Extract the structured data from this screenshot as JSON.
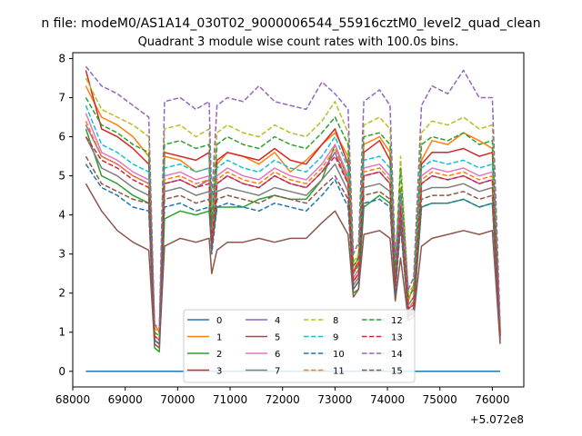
{
  "suptitle": "n file: modeM0/AS1A14_030T02_9000006544_55916cztM0_level2_quad_clean",
  "chart_data": {
    "type": "line",
    "title": "Quadrant 3 module wise count rates with 100.0s bins.",
    "xlabel": "",
    "ylabel": "",
    "offset_label": "+5.072e8",
    "xlim": [
      68000,
      76600
    ],
    "ylim": [
      -0.4,
      8.15
    ],
    "xticks": [
      68000,
      69000,
      70000,
      71000,
      72000,
      73000,
      74000,
      75000,
      76000
    ],
    "xtick_labels": [
      "68000",
      "69000",
      "70000",
      "71000",
      "72000",
      "73000",
      "74000",
      "75000",
      "76000"
    ],
    "yticks": [
      0,
      1,
      2,
      3,
      4,
      5,
      6,
      7,
      8
    ],
    "ytick_labels": [
      "0",
      "1",
      "2",
      "3",
      "4",
      "5",
      "6",
      "7",
      "8"
    ],
    "grid": false,
    "legend_placement": "lower-center",
    "legend_columns": 4,
    "x": [
      68250,
      68550,
      68850,
      69150,
      69450,
      69560,
      69650,
      69750,
      70050,
      70350,
      70600,
      70650,
      70750,
      70950,
      71250,
      71550,
      71850,
      72150,
      72450,
      72750,
      73000,
      73250,
      73350,
      73450,
      73550,
      73850,
      74050,
      74150,
      74250,
      74400,
      74500,
      74650,
      74850,
      75150,
      75450,
      75750,
      76000,
      76150
    ],
    "series": [
      {
        "name": "0",
        "color": "#1f77b4",
        "dash": "solid",
        "values": [
          0,
          0,
          0,
          0,
          0,
          0,
          0,
          0,
          0,
          0,
          0,
          0,
          0,
          0,
          0,
          0,
          0,
          0,
          0,
          0,
          0,
          0,
          0,
          0,
          0,
          0,
          0,
          0,
          0,
          0,
          0,
          0,
          0,
          0,
          0,
          0,
          0,
          0
        ]
      },
      {
        "name": "1",
        "color": "#ff7f0e",
        "dash": "solid",
        "values": [
          7.3,
          6.5,
          6.3,
          6.0,
          5.5,
          1.2,
          1.0,
          5.5,
          5.4,
          5.1,
          5.2,
          3.5,
          5.3,
          5.6,
          5.5,
          5.3,
          5.6,
          5.1,
          5.4,
          5.8,
          6.1,
          5.5,
          2.5,
          3.0,
          5.8,
          6.0,
          5.6,
          2.3,
          4.7,
          1.8,
          2.2,
          5.4,
          5.9,
          5.8,
          6.1,
          5.9,
          5.7,
          1.0
        ]
      },
      {
        "name": "2",
        "color": "#2ca02c",
        "dash": "solid",
        "values": [
          6.2,
          5.0,
          4.8,
          4.5,
          4.3,
          0.6,
          0.5,
          3.9,
          4.1,
          4.0,
          4.1,
          3.2,
          4.2,
          4.2,
          4.2,
          4.4,
          4.5,
          4.4,
          4.4,
          4.9,
          5.8,
          4.9,
          2.0,
          2.1,
          4.2,
          4.5,
          4.3,
          2.1,
          3.8,
          1.4,
          1.5,
          4.2,
          4.3,
          4.3,
          4.4,
          4.2,
          4.3,
          0.8
        ]
      },
      {
        "name": "3",
        "color": "#d62728",
        "dash": "solid",
        "values": [
          7.7,
          6.2,
          6.0,
          5.7,
          5.3,
          0.9,
          0.8,
          5.6,
          5.5,
          5.4,
          5.6,
          3.6,
          5.4,
          5.6,
          5.5,
          5.4,
          5.7,
          5.4,
          5.3,
          5.8,
          6.2,
          5.3,
          2.5,
          2.8,
          5.6,
          5.9,
          5.4,
          2.4,
          4.6,
          1.7,
          1.9,
          5.3,
          5.6,
          5.6,
          5.7,
          5.5,
          5.6,
          1.0
        ]
      },
      {
        "name": "4",
        "color": "#9467bd",
        "dash": "solid",
        "values": [
          6.3,
          5.5,
          5.3,
          5.0,
          4.8,
          0.8,
          0.7,
          4.8,
          4.9,
          4.7,
          4.9,
          3.3,
          4.8,
          5.0,
          4.8,
          4.7,
          5.0,
          4.8,
          4.7,
          5.1,
          5.6,
          4.8,
          2.3,
          2.5,
          5.0,
          5.1,
          4.8,
          2.2,
          4.2,
          1.6,
          1.7,
          4.8,
          5.0,
          4.9,
          5.0,
          4.8,
          4.9,
          0.9
        ]
      },
      {
        "name": "5",
        "color": "#8c564b",
        "dash": "solid",
        "values": [
          4.8,
          4.1,
          3.6,
          3.3,
          3.1,
          0.7,
          0.6,
          3.2,
          3.4,
          3.3,
          3.4,
          2.5,
          3.1,
          3.3,
          3.3,
          3.4,
          3.3,
          3.4,
          3.4,
          3.8,
          4.1,
          3.5,
          1.9,
          2.1,
          3.5,
          3.6,
          3.4,
          1.8,
          2.9,
          1.3,
          1.4,
          3.2,
          3.4,
          3.5,
          3.6,
          3.5,
          3.6,
          0.7
        ]
      },
      {
        "name": "6",
        "color": "#e377c2",
        "dash": "solid",
        "values": [
          6.6,
          5.6,
          5.4,
          5.1,
          4.9,
          0.9,
          0.8,
          5.0,
          5.1,
          4.9,
          5.0,
          3.4,
          5.0,
          5.2,
          5.0,
          4.9,
          5.2,
          5.0,
          4.9,
          5.3,
          5.8,
          5.0,
          2.4,
          2.6,
          5.2,
          5.3,
          5.0,
          2.3,
          4.4,
          1.6,
          1.8,
          5.0,
          5.2,
          5.1,
          5.2,
          5.0,
          5.1,
          0.9
        ]
      },
      {
        "name": "7",
        "color": "#7f7f7f",
        "dash": "solid",
        "values": [
          6.0,
          5.2,
          5.0,
          4.7,
          4.5,
          0.8,
          0.7,
          4.6,
          4.7,
          4.5,
          4.6,
          3.2,
          4.6,
          4.7,
          4.6,
          4.5,
          4.7,
          4.6,
          4.5,
          4.9,
          5.3,
          4.6,
          2.2,
          2.4,
          4.7,
          4.8,
          4.6,
          2.1,
          4.0,
          1.5,
          1.6,
          4.6,
          4.7,
          4.7,
          4.8,
          4.6,
          4.7,
          0.8
        ]
      },
      {
        "name": "8",
        "color": "#bcbd22",
        "dash": "dashed",
        "values": [
          7.5,
          6.7,
          6.5,
          6.3,
          6.0,
          1.1,
          1.0,
          6.2,
          6.3,
          6.0,
          6.2,
          4.0,
          6.1,
          6.3,
          6.1,
          6.0,
          6.3,
          6.1,
          6.0,
          6.4,
          6.9,
          6.1,
          2.8,
          3.0,
          6.3,
          6.5,
          6.2,
          2.7,
          5.5,
          2.0,
          2.2,
          6.1,
          6.4,
          6.3,
          6.5,
          6.2,
          6.3,
          1.1
        ]
      },
      {
        "name": "9",
        "color": "#17becf",
        "dash": "dashed",
        "values": [
          6.8,
          5.8,
          5.6,
          5.3,
          5.1,
          0.9,
          0.8,
          5.2,
          5.3,
          5.1,
          5.2,
          3.5,
          5.2,
          5.4,
          5.2,
          5.1,
          5.4,
          5.2,
          5.1,
          5.5,
          6.0,
          5.2,
          2.5,
          2.7,
          5.4,
          5.5,
          5.2,
          2.4,
          4.6,
          1.7,
          1.9,
          5.2,
          5.4,
          5.3,
          5.4,
          5.2,
          5.3,
          0.9
        ]
      },
      {
        "name": "10",
        "color": "#1f77b4",
        "dash": "dashed",
        "values": [
          5.3,
          4.7,
          4.5,
          4.2,
          4.1,
          0.8,
          0.7,
          4.2,
          4.3,
          4.1,
          4.2,
          3.0,
          4.2,
          4.3,
          4.2,
          4.1,
          4.3,
          4.2,
          4.1,
          4.5,
          4.9,
          4.2,
          2.1,
          2.3,
          4.3,
          4.4,
          4.2,
          2.0,
          3.7,
          1.4,
          1.5,
          4.2,
          4.3,
          4.3,
          4.4,
          4.2,
          4.3,
          0.8
        ]
      },
      {
        "name": "11",
        "color": "#ff7f0e",
        "dash": "dashed",
        "values": [
          6.4,
          5.5,
          5.3,
          5.0,
          4.8,
          0.9,
          0.8,
          4.9,
          5.0,
          4.8,
          4.9,
          3.3,
          4.9,
          5.1,
          4.9,
          4.8,
          5.1,
          4.9,
          4.8,
          5.2,
          5.7,
          4.9,
          2.4,
          2.6,
          5.1,
          5.2,
          4.9,
          2.3,
          4.3,
          1.6,
          1.8,
          4.9,
          5.1,
          5.0,
          5.1,
          4.9,
          5.0,
          0.9
        ]
      },
      {
        "name": "12",
        "color": "#2ca02c",
        "dash": "dashed",
        "values": [
          7.0,
          6.3,
          6.1,
          5.8,
          5.6,
          1.0,
          0.9,
          5.8,
          5.9,
          5.7,
          5.8,
          3.8,
          5.8,
          6.0,
          5.8,
          5.7,
          6.0,
          5.8,
          5.7,
          6.1,
          6.5,
          5.8,
          2.7,
          2.9,
          6.0,
          6.1,
          5.8,
          2.6,
          5.2,
          1.9,
          2.1,
          5.8,
          6.0,
          5.9,
          6.1,
          5.8,
          5.9,
          1.0
        ]
      },
      {
        "name": "13",
        "color": "#d62728",
        "dash": "dashed",
        "values": [
          6.0,
          5.4,
          5.2,
          4.9,
          4.7,
          0.9,
          0.8,
          4.8,
          4.9,
          4.7,
          4.8,
          3.3,
          4.8,
          5.0,
          4.8,
          4.7,
          5.0,
          4.8,
          4.7,
          5.1,
          5.5,
          4.8,
          2.3,
          2.5,
          5.0,
          5.1,
          4.8,
          2.2,
          4.2,
          1.6,
          1.7,
          4.8,
          5.0,
          4.9,
          5.0,
          4.8,
          4.9,
          0.9
        ]
      },
      {
        "name": "14",
        "color": "#9467bd",
        "dash": "dashed",
        "values": [
          7.8,
          7.3,
          7.1,
          6.8,
          6.5,
          1.2,
          1.1,
          6.9,
          7.0,
          6.7,
          6.9,
          4.4,
          6.8,
          7.0,
          6.9,
          7.3,
          6.9,
          6.8,
          6.7,
          7.4,
          7.1,
          6.7,
          3.0,
          3.3,
          6.9,
          7.2,
          6.8,
          2.9,
          4.5,
          2.1,
          2.4,
          6.8,
          7.3,
          7.1,
          7.7,
          7.0,
          7.0,
          1.2
        ]
      },
      {
        "name": "15",
        "color": "#8c564b",
        "dash": "dashed",
        "values": [
          5.5,
          4.8,
          4.6,
          4.4,
          4.3,
          0.8,
          0.7,
          4.4,
          4.5,
          4.3,
          4.4,
          3.1,
          4.4,
          4.5,
          4.4,
          4.3,
          4.5,
          4.4,
          4.3,
          4.7,
          5.0,
          4.4,
          2.1,
          2.3,
          4.5,
          4.6,
          4.4,
          2.1,
          3.9,
          1.4,
          1.6,
          4.4,
          4.5,
          4.5,
          4.6,
          4.4,
          4.5,
          0.8
        ]
      }
    ]
  }
}
